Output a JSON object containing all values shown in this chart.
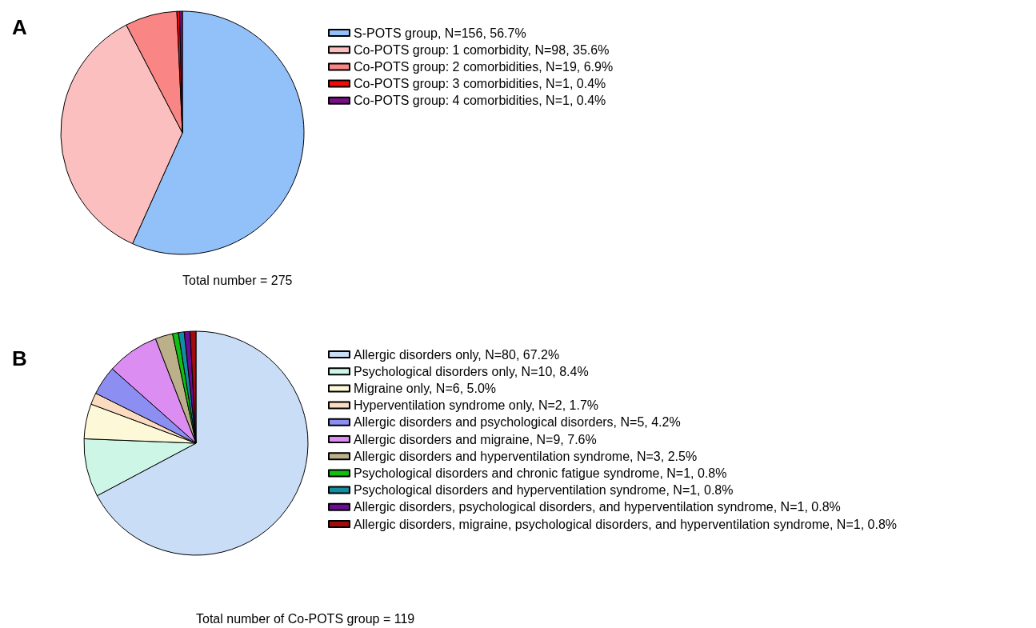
{
  "chart_data": [
    {
      "type": "pie",
      "title": "A",
      "categories": [
        "S-POTS group, N=156, 56.7%",
        "Co-POTS group: 1 comorbidity, N=98, 35.6%",
        "Co-POTS group: 2 comorbidities, N=19, 6.9%",
        "Co-POTS group: 3 comorbidities, N=1, 0.4%",
        "Co-POTS group: 4 comorbidities, N=1, 0.4%"
      ],
      "values": [
        156,
        98,
        19,
        1,
        1
      ],
      "colors": [
        "#92c0f8",
        "#fcbfbf",
        "#fa8585",
        "#f40a0a",
        "#7a0f88"
      ],
      "annotations": [
        "Total number = 275"
      ],
      "legend": "right"
    },
    {
      "type": "pie",
      "title": "B",
      "categories": [
        "Allergic disorders only, N=80, 67.2%",
        "Psychological disorders only, N=10, 8.4%",
        "Migraine only, N=6, 5.0%",
        "Hyperventilation syndrome only, N=2, 1.7%",
        "Allergic disorders and psychological disorders, N=5, 4.2%",
        "Allergic disorders and migraine, N=9, 7.6%",
        "Allergic disorders and hyperventilation syndrome, N=3, 2.5%",
        "Psychological disorders and chronic fatigue syndrome, N=1, 0.8%",
        "Psychological disorders and hyperventilation syndrome, N=1, 0.8%",
        "Allergic disorders, psychological disorders, and hyperventilation syndrome, N=1, 0.8%",
        "Allergic disorders, migraine, psychological disorders, and hyperventilation syndrome, N=1, 0.8%"
      ],
      "values": [
        80,
        10,
        6,
        2,
        5,
        9,
        3,
        1,
        1,
        1,
        1
      ],
      "colors": [
        "#c9ddf6",
        "#cdf6e6",
        "#fdf8d8",
        "#fbdcc0",
        "#8c8ef2",
        "#dc8df2",
        "#bcb08a",
        "#12be12",
        "#128ea2",
        "#6a0c96",
        "#a20c0c"
      ],
      "annotations": [
        "Total number of Co-POTS group = 119"
      ],
      "legend": "right"
    }
  ]
}
